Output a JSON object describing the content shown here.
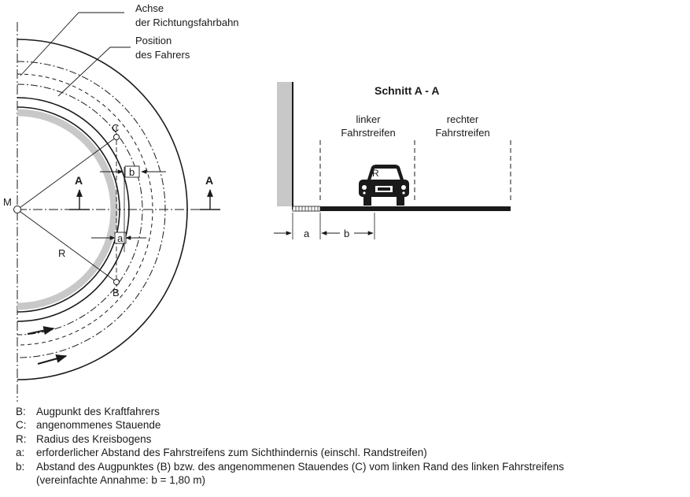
{
  "plan": {
    "callout_axis": [
      "Achse",
      "der Richtungsfahrbahn"
    ],
    "callout_driver": [
      "Position",
      "des Fahrers"
    ],
    "point_c": "C",
    "point_b": "B",
    "point_m": "M",
    "radius": "R",
    "dim_a": "a",
    "dim_b": "b",
    "section_mark": "A"
  },
  "section": {
    "title": "Schnitt  A - A",
    "left_lane": [
      "linker",
      "Fahrstreifen"
    ],
    "right_lane": [
      "rechter",
      "Fahrstreifen"
    ],
    "car_letter": "R",
    "dim_a": "a",
    "dim_b": "b"
  },
  "legend": [
    {
      "key": "B:",
      "text": "Augpunkt des Kraftfahrers"
    },
    {
      "key": "C:",
      "text": "angenommenes Stauende"
    },
    {
      "key": "R:",
      "text": "Radius des Kreisbogens"
    },
    {
      "key": "a:",
      "text": "erforderlicher Abstand des Fahrstreifens zum Sichthindernis (einschl. Randstreifen)"
    },
    {
      "key": "b:",
      "text": "Abstand des Augpunktes (B) bzw. des angenommenen Stauendes (C) vom linken Rand des linken Fahrstreifens"
    },
    {
      "key": "",
      "text": "(vereinfachte Annahme: b = 1,80 m)"
    }
  ],
  "colors": {
    "ink": "#1a1a1a",
    "shade": "#c8c8c8"
  }
}
